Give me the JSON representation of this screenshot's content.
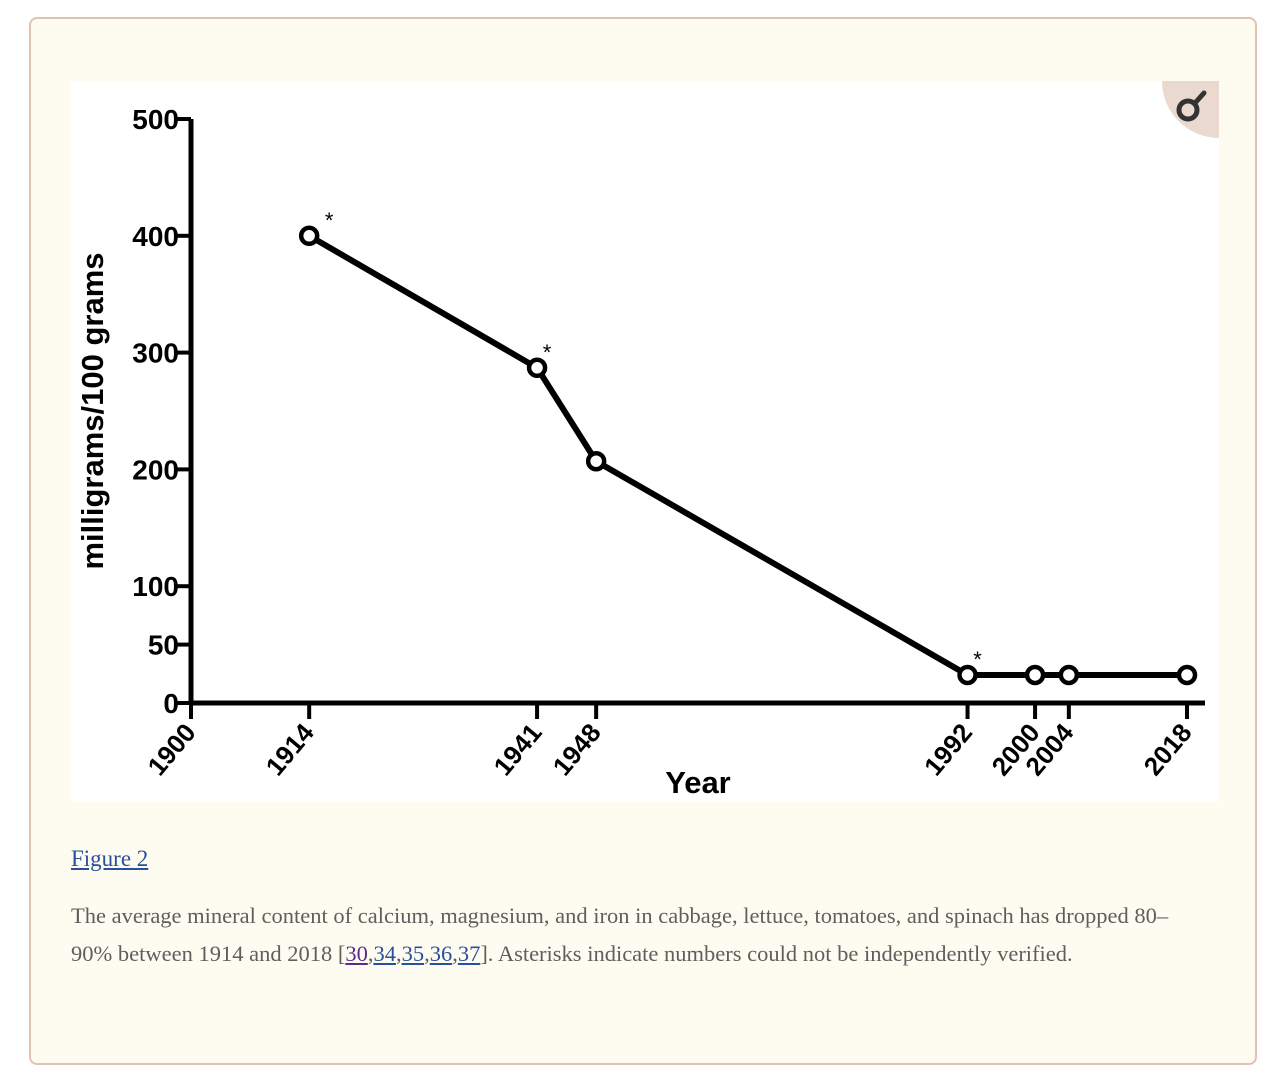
{
  "chart_data": {
    "type": "line",
    "xlabel": "Year",
    "ylabel": "milligrams/100 grams",
    "xlim": [
      1900,
      2018
    ],
    "ylim": [
      0,
      500
    ],
    "x_ticks": [
      1900,
      1914,
      1941,
      1948,
      1992,
      2000,
      2004,
      2018
    ],
    "y_ticks": [
      0,
      50,
      100,
      200,
      300,
      400,
      500
    ],
    "series": [
      {
        "x": [
          1914,
          1941,
          1948,
          1992,
          2000,
          2004,
          2018
        ],
        "y": [
          400,
          287,
          207,
          24,
          24,
          24,
          24
        ],
        "marker": "open-circle",
        "color": "#000000"
      }
    ],
    "annotations": [
      {
        "x": 1914,
        "text": "*"
      },
      {
        "x": 1941,
        "text": "*"
      },
      {
        "x": 1992,
        "text": "*"
      }
    ],
    "grid": false
  },
  "figure_link": "Figure 2",
  "caption": {
    "text_before": "The average mineral content of calcium, magnesium, and iron in cabbage, lettuce, tomatoes, and spinach has dropped 80–90% between 1914 and 2018 [",
    "refs": [
      "30",
      "34",
      "35",
      "36",
      "37"
    ],
    "separator": ",",
    "text_after": "]. Asterisks indicate numbers could not be independently verified."
  },
  "icons": {
    "zoom": "magnify-icon"
  }
}
